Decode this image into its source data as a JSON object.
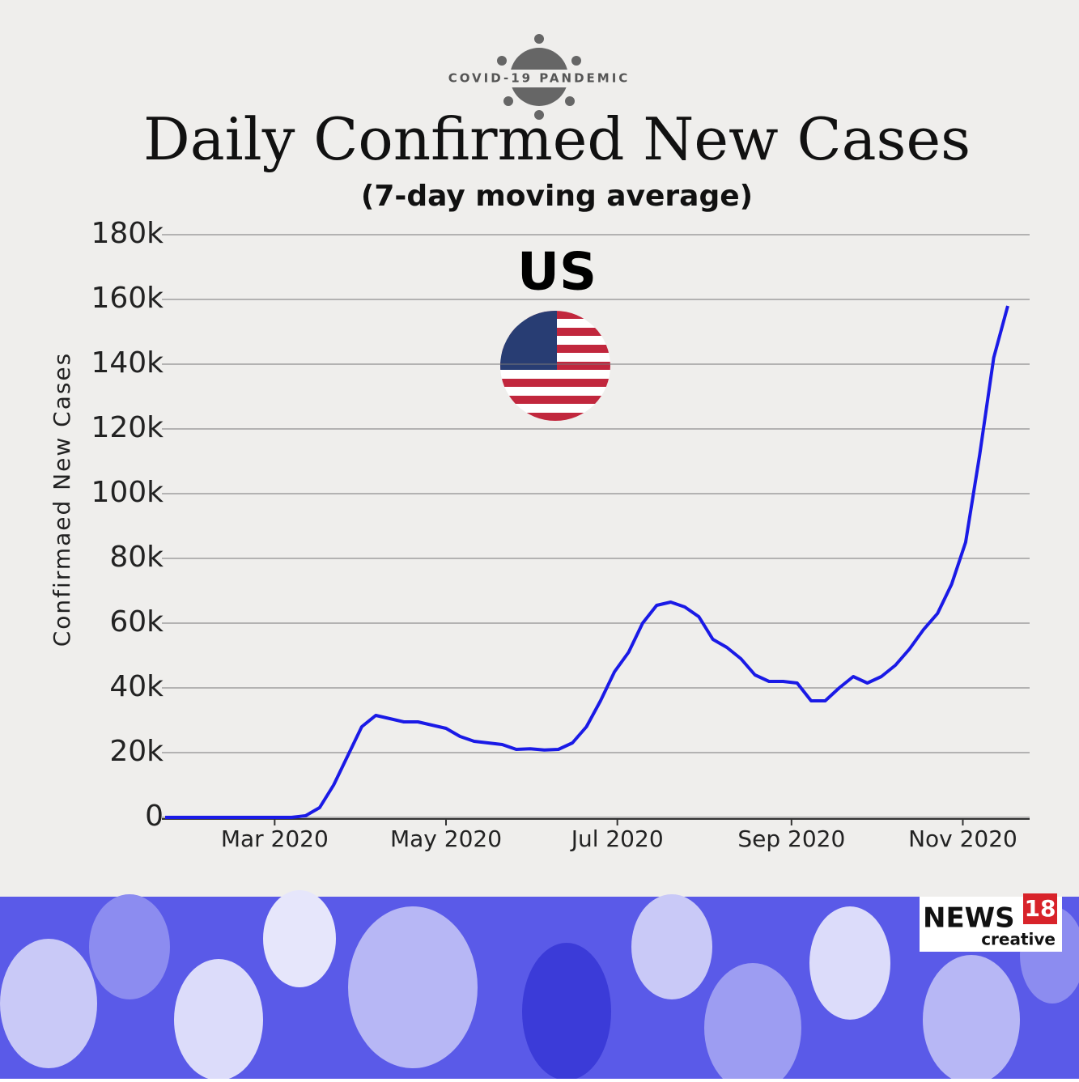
{
  "chart_data": {
    "type": "line",
    "kicker": "COVID-19 PANDEMIC",
    "title": "Daily Confirmed New Cases",
    "subtitle": "(7-day moving average)",
    "annotation": "US",
    "y_label": "Confirmaed New Cases",
    "brand": {
      "name": "NEWS",
      "number": "18",
      "tagline": "creative"
    },
    "series": [
      {
        "name": "US",
        "color": "#1a1ae6",
        "values": [
          0,
          0,
          0,
          0,
          0,
          0,
          0,
          0,
          0,
          0,
          500,
          3000,
          10000,
          19000,
          28000,
          31500,
          30500,
          29500,
          29500,
          28500,
          27500,
          25000,
          23500,
          23000,
          22500,
          21000,
          21200,
          20800,
          21000,
          23000,
          28000,
          36000,
          45000,
          51000,
          60000,
          65500,
          66500,
          65000,
          62000,
          55000,
          52500,
          49000,
          44000,
          42000,
          42000,
          41500,
          36000,
          36000,
          40000,
          43500,
          41500,
          43500,
          47000,
          52000,
          58000,
          63000,
          72000,
          85000,
          112000,
          142000,
          158000
        ]
      }
    ],
    "xlim": [
      0,
      60
    ],
    "xticks": [
      {
        "value": 7.8,
        "label": "Mar 2020"
      },
      {
        "value": 20,
        "label": "May 2020"
      },
      {
        "value": 32.2,
        "label": "Jul 2020"
      },
      {
        "value": 44.6,
        "label": "Sep 2020"
      },
      {
        "value": 56.8,
        "label": "Nov 2020"
      }
    ],
    "ylim": [
      0,
      180000
    ],
    "yticks": [
      0,
      {
        "value": 20000,
        "label": "20k"
      },
      {
        "value": 40000,
        "label": "40k"
      },
      {
        "value": 60000,
        "label": "60k"
      },
      {
        "value": 80000,
        "label": "80k"
      },
      {
        "value": 100000,
        "label": "100k"
      },
      {
        "value": 120000,
        "label": "120k"
      },
      {
        "value": 140000,
        "label": "140k"
      },
      {
        "value": 160000,
        "label": "160k"
      },
      {
        "value": 180000,
        "label": "180k"
      }
    ],
    "grid": true
  }
}
